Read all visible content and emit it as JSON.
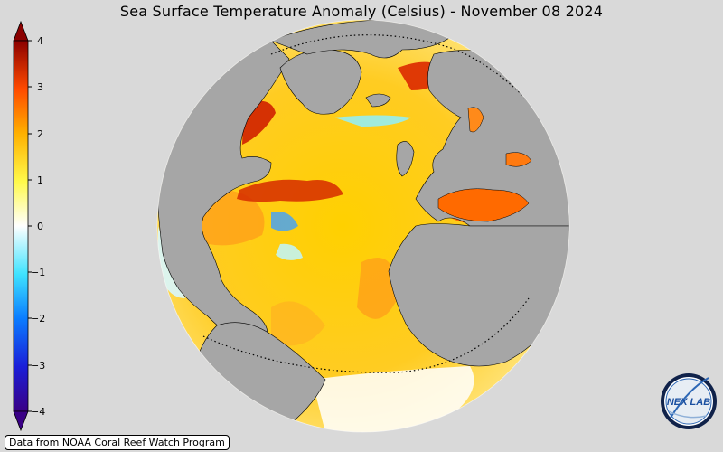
{
  "title": "Sea Surface Temperature Anomaly (Celsius) - November 08 2024",
  "colorbar": {
    "ticks": [
      "4",
      "3",
      "2",
      "1",
      "0",
      "−1",
      "−2",
      "−3",
      "−4"
    ],
    "min": -4,
    "max": 4,
    "colors": [
      "#3a0085",
      "#0a1cf5",
      "#00a7ff",
      "#7ffcff",
      "#ffffff",
      "#fff94a",
      "#ffb600",
      "#ff5a00",
      "#b80000",
      "#7a0000"
    ]
  },
  "map": {
    "projection": "orthographic",
    "center": "North Atlantic",
    "land_color": "#a6a6a6",
    "ocean_warm_color": "#ffd21e",
    "anomaly_hot_color": "#e03a00",
    "anomaly_cool_color": "#aef4ff",
    "graticule": [
      "Arctic Circle",
      "Tropic of Capricorn"
    ]
  },
  "source": "Data from NOAA Coral Reef Watch Program",
  "logo": {
    "text": "NEX LAB",
    "icon": "nexlab-logo-icon"
  }
}
